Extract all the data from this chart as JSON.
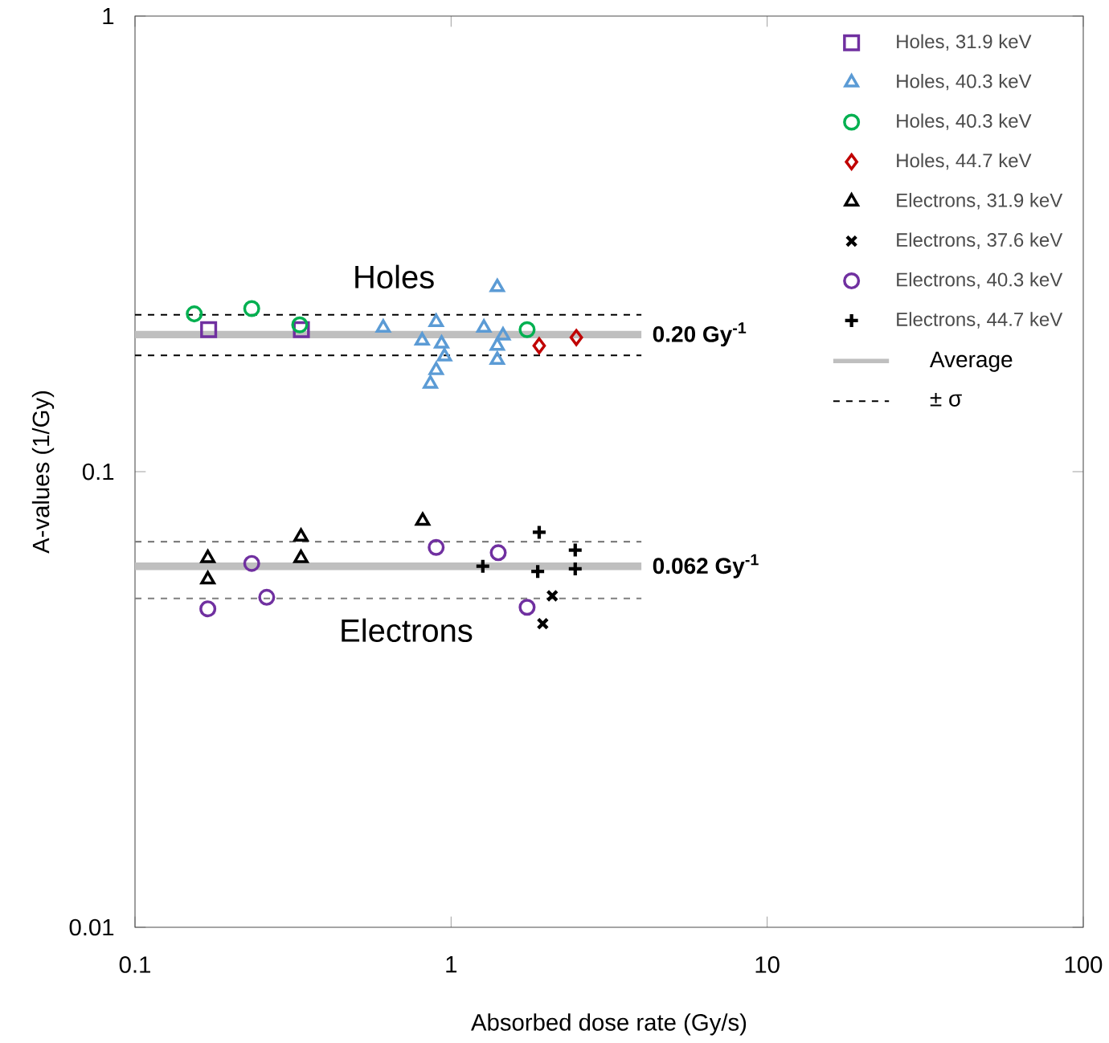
{
  "chart_data": {
    "type": "scatter",
    "xlabel": "Absorbed dose rate (Gy/s)",
    "ylabel": "A-values (1/Gy)",
    "log": "xy",
    "xlim": [
      0.1,
      100
    ],
    "ylim": [
      0.01,
      1
    ],
    "xticks": [
      0.1,
      1,
      10,
      100
    ],
    "yticks": [
      0.01,
      0.1,
      1
    ],
    "grid": false,
    "legend": "top right",
    "series": [
      {
        "name": "Holes, 31.9 keV",
        "color": "#7030a0",
        "marker": "square",
        "x": [
          0.171,
          0.336
        ],
        "values": [
          0.205,
          0.205
        ]
      },
      {
        "name": "Holes, 40.3 keV",
        "color": "#5b9bd5",
        "marker": "triangle",
        "x": [
          0.61,
          0.897,
          0.81,
          0.933,
          0.953,
          0.897,
          0.86,
          1.4,
          1.27,
          1.46,
          1.4,
          1.4
        ],
        "values": [
          0.207,
          0.213,
          0.194,
          0.191,
          0.179,
          0.167,
          0.156,
          0.254,
          0.207,
          0.199,
          0.189,
          0.176
        ]
      },
      {
        "name": "Holes, 40.3 keV",
        "color": "#00b050",
        "marker": "circle",
        "x": [
          0.154,
          0.234,
          0.332,
          1.74
        ],
        "values": [
          0.222,
          0.228,
          0.21,
          0.205
        ]
      },
      {
        "name": "Holes, 44.7 keV",
        "color": "#c00000",
        "marker": "diamond",
        "x": [
          1.9,
          2.49
        ],
        "values": [
          0.189,
          0.197
        ]
      },
      {
        "name": "Electrons, 31.9 keV",
        "color": "#000000",
        "marker": "triangle",
        "x": [
          0.17,
          0.17,
          0.335,
          0.335,
          0.813
        ],
        "values": [
          0.0646,
          0.058,
          0.072,
          0.0646,
          0.078
        ]
      },
      {
        "name": "Electrons, 37.6 keV",
        "color": "#000000",
        "marker": "cross",
        "x": [
          2.09,
          1.95
        ],
        "values": [
          0.0534,
          0.0464
        ]
      },
      {
        "name": "Electrons, 40.3 keV",
        "color": "#7030a0",
        "marker": "circle",
        "x": [
          0.17,
          0.234,
          0.261,
          0.897,
          1.41,
          1.74
        ],
        "values": [
          0.05,
          0.0629,
          0.053,
          0.0682,
          0.0664,
          0.0504
        ]
      },
      {
        "name": "Electrons, 44.7 keV",
        "color": "#000000",
        "marker": "plus",
        "x": [
          1.26,
          1.9,
          1.88,
          2.47,
          2.47
        ],
        "values": [
          0.062,
          0.0736,
          0.0604,
          0.0673,
          0.0612
        ]
      }
    ],
    "ref_lines": [
      {
        "axis": "y",
        "value": 0.2,
        "label": "0.20 Gy$^{-1}$",
        "color": "#bfbfbf",
        "line_style": "solid"
      },
      {
        "axis": "y",
        "value": 0.221,
        "color": "#000000",
        "line_style": "dashed"
      },
      {
        "axis": "y",
        "value": 0.18,
        "color": "#000000",
        "line_style": "dashed"
      },
      {
        "axis": "y",
        "value": 0.062,
        "label": "0.062 Gy$^{-1}$",
        "color": "#bfbfbf",
        "line_style": "solid"
      },
      {
        "axis": "y",
        "value": 0.0702,
        "color": "#7f7f7f",
        "line_style": "dashed"
      },
      {
        "axis": "y",
        "value": 0.0527,
        "color": "#7f7f7f",
        "line_style": "dashed"
      }
    ],
    "annotations": [
      "Holes",
      "Electrons",
      "Average",
      "± σ"
    ]
  }
}
